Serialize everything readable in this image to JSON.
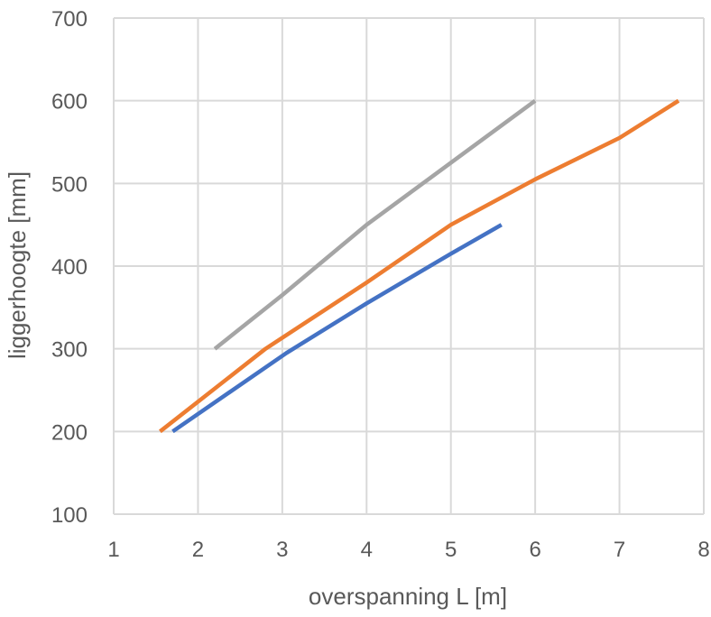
{
  "chart_data": {
    "type": "line",
    "title": "",
    "xlabel": "overspanning L [m]",
    "ylabel": "liggerhoogte [mm]",
    "xlim": [
      1,
      8
    ],
    "ylim": [
      100,
      700
    ],
    "xticks": [
      1,
      2,
      3,
      4,
      5,
      6,
      7,
      8
    ],
    "yticks": [
      100,
      200,
      300,
      400,
      500,
      600,
      700
    ],
    "grid": true,
    "legend": "none",
    "series": [
      {
        "color": "#4472C4",
        "points": [
          [
            1.7,
            200
          ],
          [
            3.05,
            295
          ],
          [
            4.0,
            355
          ],
          [
            5.0,
            415
          ],
          [
            5.6,
            450
          ]
        ]
      },
      {
        "color": "#ED7D31",
        "points": [
          [
            1.55,
            200
          ],
          [
            2.8,
            300
          ],
          [
            4.0,
            380
          ],
          [
            5.0,
            450
          ],
          [
            6.0,
            505
          ],
          [
            7.0,
            555
          ],
          [
            7.7,
            600
          ]
        ]
      },
      {
        "color": "#A5A5A5",
        "points": [
          [
            2.2,
            300
          ],
          [
            3.0,
            365
          ],
          [
            4.0,
            450
          ],
          [
            5.0,
            525
          ],
          [
            6.0,
            600
          ]
        ]
      }
    ]
  }
}
